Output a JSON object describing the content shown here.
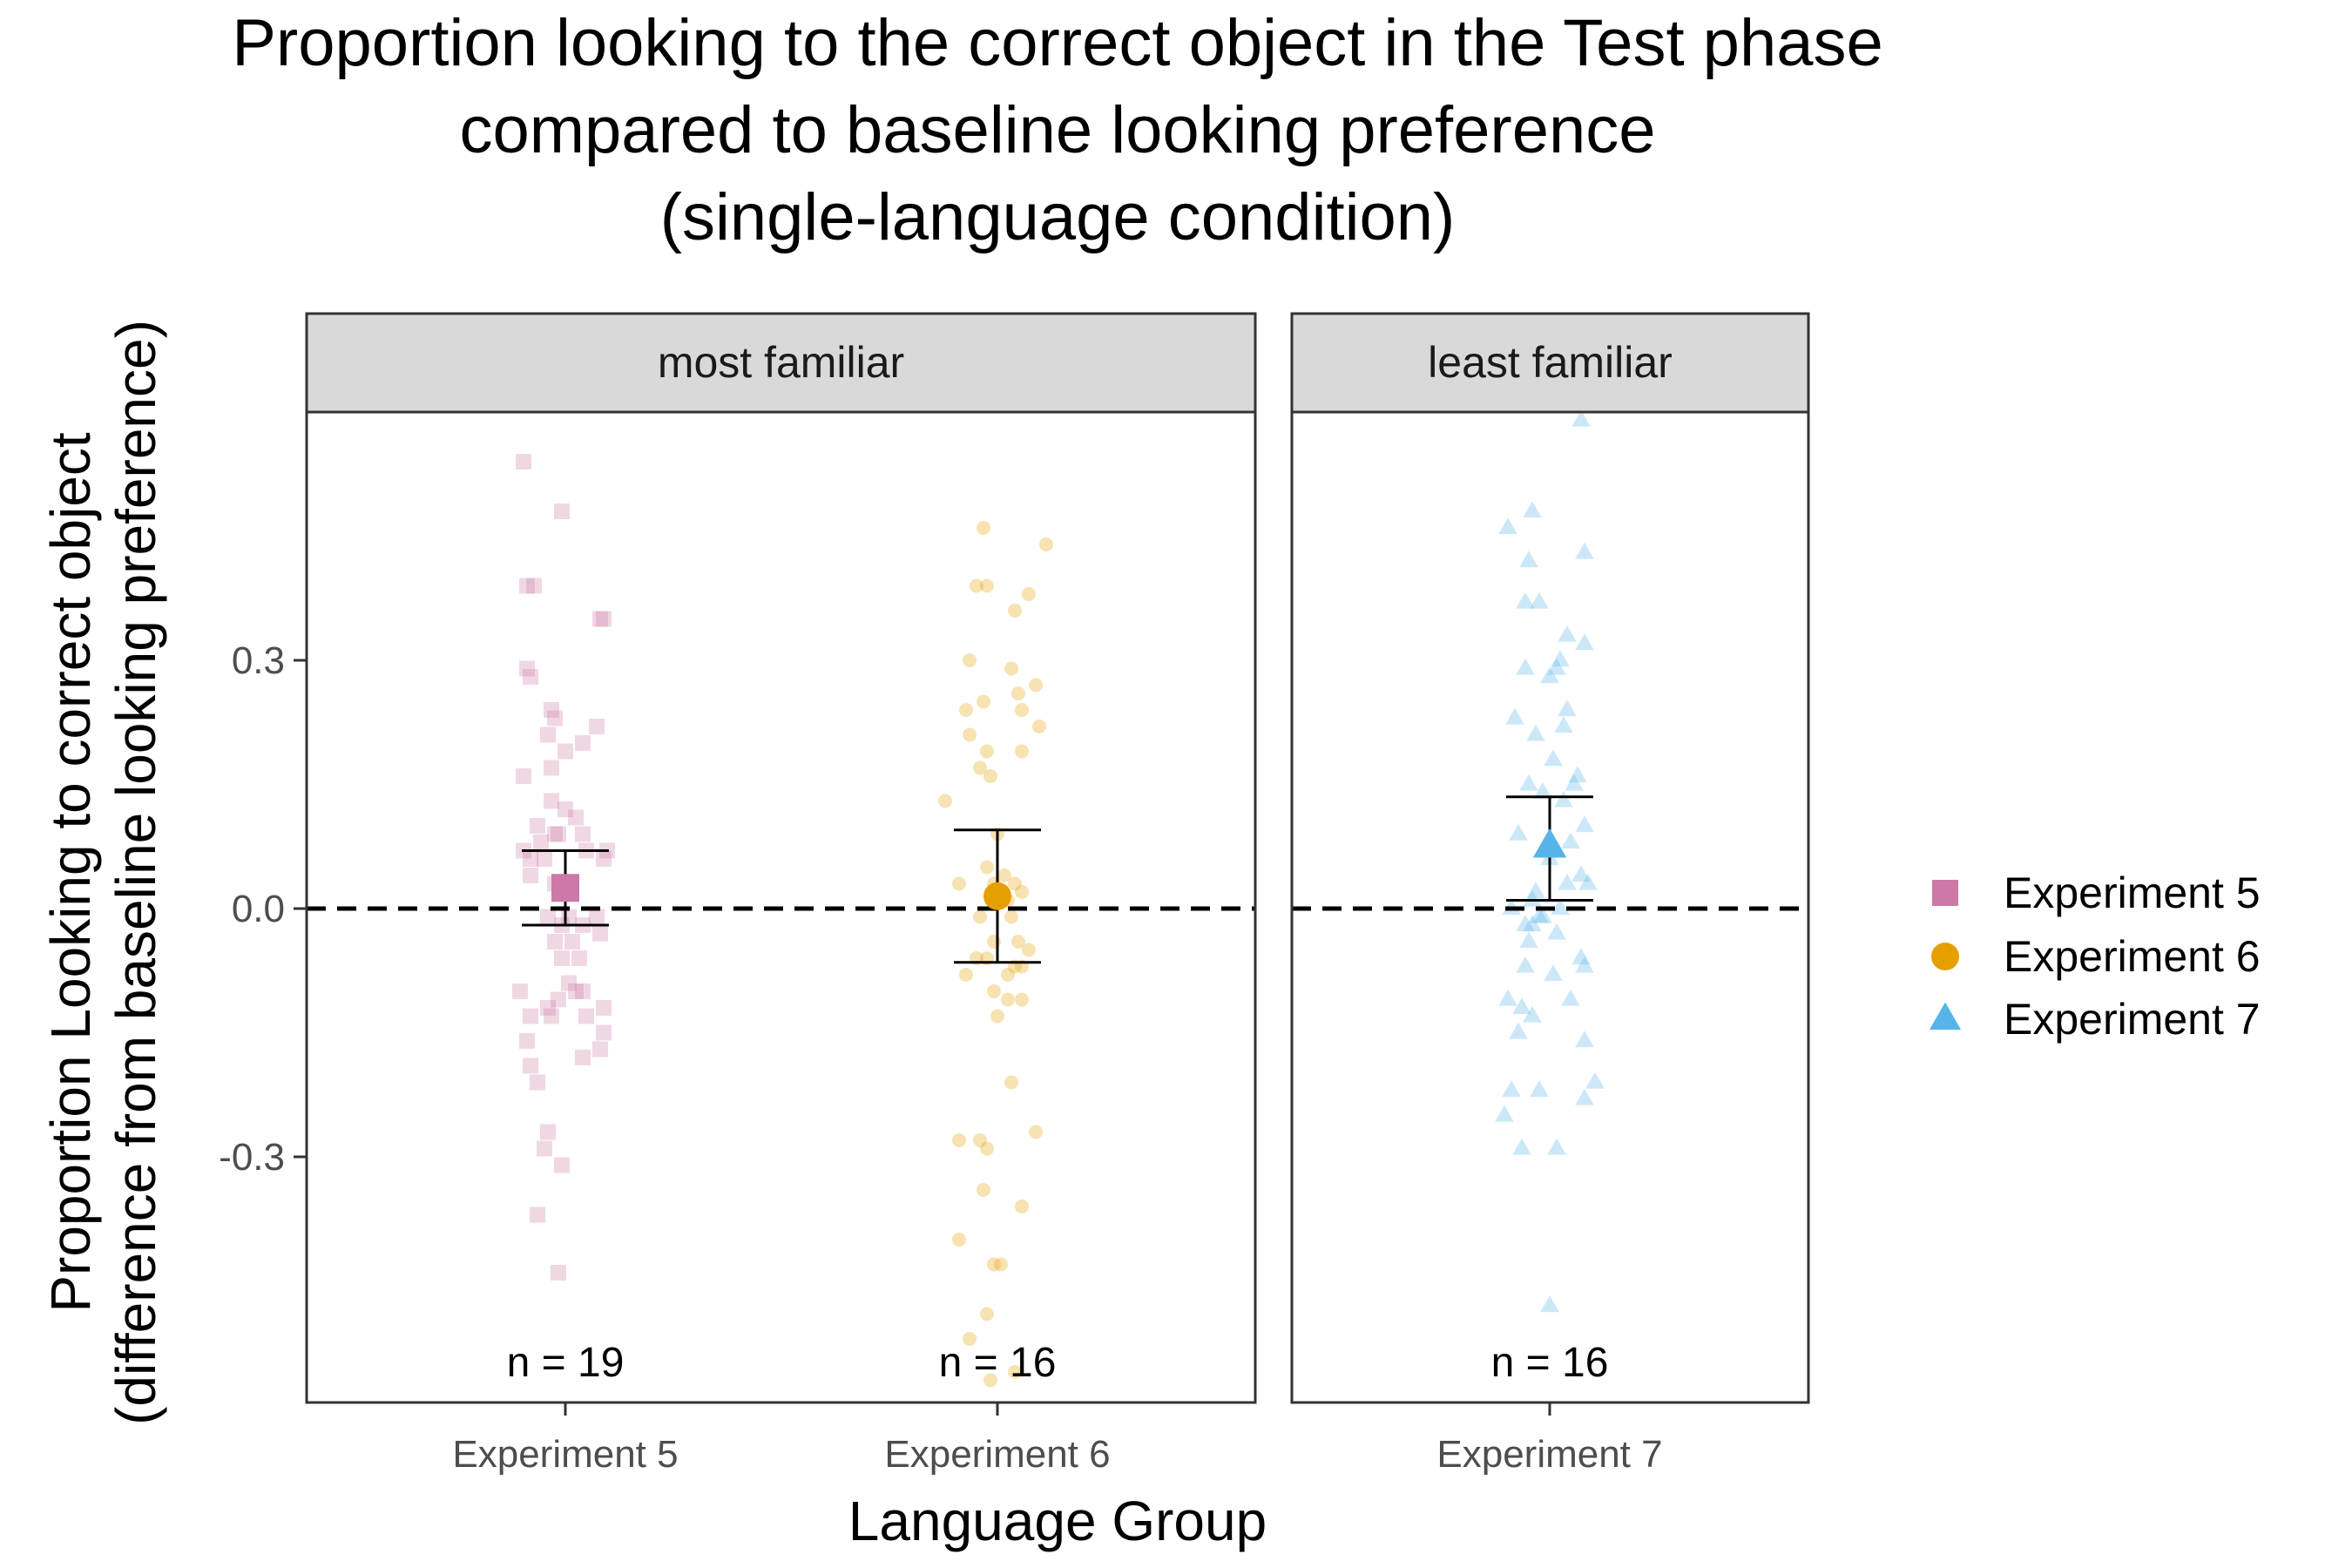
{
  "chart_data": {
    "type": "scatter",
    "title_lines": [
      "Proportion looking to the correct object in the Test phase",
      "compared to baseline looking preference",
      "(single-language condition)"
    ],
    "xlabel": "Language Group",
    "ylabel_lines": [
      "Proportion Looking to correct object",
      "(difference from baseline looking preference)"
    ],
    "y_ticks": [
      -0.3,
      0.0,
      0.3
    ],
    "y_tick_labels": [
      "-0.3",
      "0.0",
      "0.3"
    ],
    "ylim": [
      -0.59,
      0.6
    ],
    "reference_line_y": 0.0,
    "grid": false,
    "legend_position": "right",
    "facets": [
      {
        "label": "most familiar",
        "categories": [
          "Experiment 5",
          "Experiment 6"
        ]
      },
      {
        "label": "least familiar",
        "categories": [
          "Experiment 7"
        ]
      }
    ],
    "series": [
      {
        "name": "Experiment 5",
        "category": "Experiment 5",
        "shape": "square",
        "color": "#CC79A7",
        "n_label": "n = 19",
        "mean": 0.025,
        "ci": [
          -0.02,
          0.07
        ],
        "points": [
          [
            -0.12,
            0.54
          ],
          [
            -0.01,
            0.48
          ],
          [
            0.1,
            0.35
          ],
          [
            0.11,
            0.35
          ],
          [
            -0.11,
            0.39
          ],
          [
            -0.09,
            0.39
          ],
          [
            -0.11,
            0.29
          ],
          [
            -0.1,
            0.28
          ],
          [
            -0.04,
            0.24
          ],
          [
            -0.03,
            0.23
          ],
          [
            0.09,
            0.22
          ],
          [
            -0.05,
            0.21
          ],
          [
            -0.04,
            0.17
          ],
          [
            0.0,
            0.19
          ],
          [
            0.05,
            0.2
          ],
          [
            -0.12,
            0.16
          ],
          [
            -0.04,
            0.13
          ],
          [
            -0.08,
            0.1
          ],
          [
            -0.03,
            0.09
          ],
          [
            0.0,
            0.12
          ],
          [
            -0.02,
            0.09
          ],
          [
            0.03,
            0.11
          ],
          [
            0.05,
            0.09
          ],
          [
            -0.12,
            0.07
          ],
          [
            -0.07,
            0.08
          ],
          [
            -0.1,
            0.06
          ],
          [
            -0.06,
            0.06
          ],
          [
            -0.03,
            0.03
          ],
          [
            0.0,
            0.03
          ],
          [
            0.06,
            0.07
          ],
          [
            0.11,
            0.06
          ],
          [
            0.12,
            0.07
          ],
          [
            -0.1,
            0.04
          ],
          [
            -0.05,
            -0.01
          ],
          [
            -0.01,
            -0.02
          ],
          [
            0.01,
            -0.01
          ],
          [
            0.05,
            -0.02
          ],
          [
            0.09,
            -0.01
          ],
          [
            -0.03,
            -0.04
          ],
          [
            0.02,
            -0.04
          ],
          [
            -0.01,
            -0.06
          ],
          [
            0.04,
            -0.06
          ],
          [
            0.1,
            -0.03
          ],
          [
            -0.13,
            -0.1
          ],
          [
            -0.1,
            -0.13
          ],
          [
            -0.05,
            -0.12
          ],
          [
            -0.02,
            -0.11
          ],
          [
            0.01,
            -0.09
          ],
          [
            0.03,
            -0.1
          ],
          [
            0.05,
            -0.1
          ],
          [
            0.06,
            -0.13
          ],
          [
            -0.11,
            -0.16
          ],
          [
            -0.04,
            -0.13
          ],
          [
            0.11,
            -0.12
          ],
          [
            0.11,
            -0.15
          ],
          [
            -0.1,
            -0.19
          ],
          [
            -0.08,
            -0.21
          ],
          [
            0.05,
            -0.18
          ],
          [
            0.1,
            -0.17
          ],
          [
            -0.05,
            -0.27
          ],
          [
            -0.06,
            -0.29
          ],
          [
            -0.01,
            -0.31
          ],
          [
            -0.08,
            -0.37
          ],
          [
            -0.02,
            -0.44
          ]
        ]
      },
      {
        "name": "Experiment 6",
        "category": "Experiment 6",
        "shape": "circle",
        "color": "#E69F00",
        "n_label": "n = 16",
        "mean": 0.015,
        "ci": [
          -0.065,
          0.095
        ],
        "points": [
          [
            -0.04,
            0.46
          ],
          [
            0.14,
            0.44
          ],
          [
            -0.06,
            0.39
          ],
          [
            -0.03,
            0.39
          ],
          [
            0.09,
            0.38
          ],
          [
            0.05,
            0.36
          ],
          [
            -0.08,
            0.3
          ],
          [
            0.04,
            0.29
          ],
          [
            0.11,
            0.27
          ],
          [
            0.06,
            0.26
          ],
          [
            -0.04,
            0.25
          ],
          [
            -0.09,
            0.24
          ],
          [
            0.07,
            0.24
          ],
          [
            0.12,
            0.22
          ],
          [
            -0.08,
            0.21
          ],
          [
            -0.03,
            0.19
          ],
          [
            0.07,
            0.19
          ],
          [
            -0.05,
            0.17
          ],
          [
            -0.02,
            0.16
          ],
          [
            -0.15,
            0.13
          ],
          [
            0.0,
            0.09
          ],
          [
            -0.03,
            0.05
          ],
          [
            0.02,
            0.04
          ],
          [
            -0.11,
            0.03
          ],
          [
            0.05,
            0.03
          ],
          [
            -0.01,
            0.03
          ],
          [
            0.07,
            0.02
          ],
          [
            0.03,
            0.01
          ],
          [
            -0.05,
            -0.01
          ],
          [
            0.04,
            -0.01
          ],
          [
            -0.01,
            -0.04
          ],
          [
            0.06,
            -0.04
          ],
          [
            0.09,
            -0.05
          ],
          [
            -0.03,
            -0.06
          ],
          [
            0.05,
            -0.07
          ],
          [
            0.07,
            -0.07
          ],
          [
            -0.09,
            -0.08
          ],
          [
            -0.06,
            -0.06
          ],
          [
            0.03,
            -0.08
          ],
          [
            -0.01,
            -0.1
          ],
          [
            0.03,
            -0.11
          ],
          [
            0.0,
            -0.13
          ],
          [
            0.07,
            -0.11
          ],
          [
            0.04,
            -0.21
          ],
          [
            -0.11,
            -0.28
          ],
          [
            -0.05,
            -0.28
          ],
          [
            -0.03,
            -0.29
          ],
          [
            0.11,
            -0.27
          ],
          [
            -0.04,
            -0.34
          ],
          [
            0.07,
            -0.36
          ],
          [
            -0.11,
            -0.4
          ],
          [
            -0.01,
            -0.43
          ],
          [
            0.01,
            -0.43
          ],
          [
            -0.03,
            -0.49
          ],
          [
            -0.08,
            -0.52
          ],
          [
            0.05,
            -0.56
          ],
          [
            -0.02,
            -0.57
          ]
        ]
      },
      {
        "name": "Experiment 7",
        "category": "Experiment 7",
        "shape": "triangle",
        "color": "#56B4E9",
        "n_label": "n = 16",
        "mean": 0.075,
        "ci": [
          0.01,
          0.135
        ],
        "points": [
          [
            0.09,
            0.59
          ],
          [
            -0.05,
            0.48
          ],
          [
            -0.12,
            0.46
          ],
          [
            0.1,
            0.43
          ],
          [
            -0.06,
            0.42
          ],
          [
            -0.07,
            0.37
          ],
          [
            -0.03,
            0.37
          ],
          [
            0.05,
            0.33
          ],
          [
            0.1,
            0.32
          ],
          [
            0.03,
            0.3
          ],
          [
            0.02,
            0.29
          ],
          [
            -0.07,
            0.29
          ],
          [
            0.0,
            0.28
          ],
          [
            0.05,
            0.24
          ],
          [
            0.04,
            0.22
          ],
          [
            -0.1,
            0.23
          ],
          [
            -0.04,
            0.21
          ],
          [
            0.01,
            0.18
          ],
          [
            0.07,
            0.15
          ],
          [
            -0.06,
            0.15
          ],
          [
            0.08,
            0.16
          ],
          [
            -0.02,
            0.14
          ],
          [
            0.04,
            0.13
          ],
          [
            -0.09,
            0.09
          ],
          [
            0.1,
            0.1
          ],
          [
            0.06,
            0.08
          ],
          [
            0.0,
            0.06
          ],
          [
            0.09,
            0.04
          ],
          [
            0.11,
            0.03
          ],
          [
            0.05,
            0.03
          ],
          [
            -0.05,
            0.01
          ],
          [
            -0.04,
            0.02
          ],
          [
            -0.11,
            0.0
          ],
          [
            0.03,
            0.0
          ],
          [
            -0.05,
            -0.02
          ],
          [
            -0.03,
            -0.01
          ],
          [
            -0.07,
            -0.02
          ],
          [
            -0.02,
            -0.01
          ],
          [
            0.02,
            -0.03
          ],
          [
            -0.06,
            -0.04
          ],
          [
            -0.07,
            -0.07
          ],
          [
            0.01,
            -0.08
          ],
          [
            0.09,
            -0.06
          ],
          [
            0.1,
            -0.07
          ],
          [
            -0.12,
            -0.11
          ],
          [
            0.06,
            -0.11
          ],
          [
            -0.08,
            -0.12
          ],
          [
            -0.05,
            -0.13
          ],
          [
            -0.09,
            -0.15
          ],
          [
            0.1,
            -0.16
          ],
          [
            0.13,
            -0.21
          ],
          [
            -0.11,
            -0.22
          ],
          [
            -0.03,
            -0.22
          ],
          [
            0.1,
            -0.23
          ],
          [
            -0.13,
            -0.25
          ],
          [
            -0.08,
            -0.29
          ],
          [
            0.02,
            -0.29
          ],
          [
            0.0,
            -0.48
          ]
        ]
      }
    ]
  }
}
